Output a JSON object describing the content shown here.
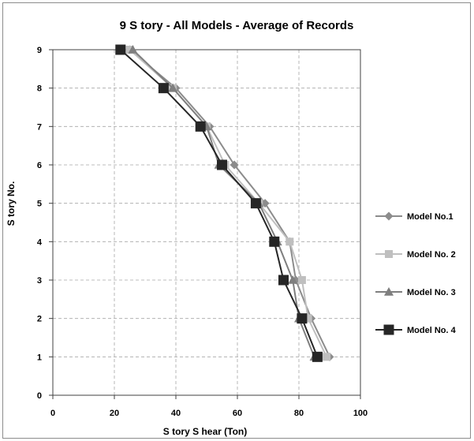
{
  "chart_data": {
    "type": "line",
    "title": "9 S tory - All Models - Average of Records",
    "xlabel": "S tory S hear (Ton)",
    "ylabel": "S tory No.",
    "xlim": [
      0,
      100
    ],
    "ylim": [
      0,
      9
    ],
    "xticks": [
      "0",
      "20",
      "40",
      "60",
      "80",
      "100"
    ],
    "yticks": [
      "0",
      "1",
      "2",
      "3",
      "4",
      "5",
      "6",
      "7",
      "8",
      "9"
    ],
    "grid": "dashed-major",
    "legend_position": "right",
    "y": [
      1,
      2,
      3,
      4,
      5,
      6,
      7,
      8,
      9
    ],
    "series": [
      {
        "name": "Model No.1",
        "marker": "diamond",
        "color": "#8c8c8c",
        "x": [
          90,
          84,
          79,
          77,
          69,
          59,
          51,
          40,
          25
        ]
      },
      {
        "name": "Model No. 2",
        "marker": "square",
        "color": "#bfbfbf",
        "x": [
          89,
          83,
          81,
          77,
          67,
          56,
          50,
          39,
          25
        ]
      },
      {
        "name": "Model No. 3",
        "marker": "triangle",
        "color": "#7f7f7f",
        "x": [
          85,
          80,
          78,
          73,
          67,
          54,
          50,
          39,
          26
        ]
      },
      {
        "name": "Model No. 4",
        "marker": "bigsquare",
        "color": "#262626",
        "x": [
          86,
          81,
          75,
          72,
          66,
          55,
          48,
          36,
          22
        ]
      }
    ]
  }
}
